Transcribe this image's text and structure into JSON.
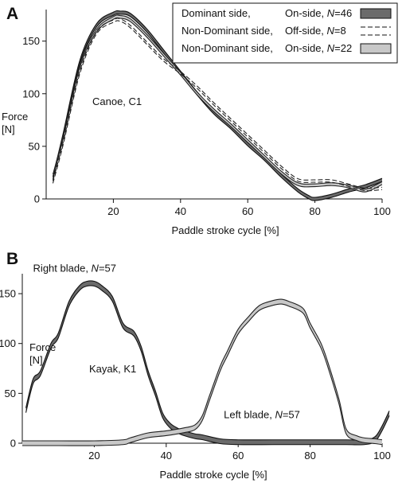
{
  "chart_data": [
    {
      "panel": "A",
      "type": "line",
      "title": "",
      "xlabel": "Paddle stroke cycle [%]",
      "ylabel_line1": "Force",
      "ylabel_line2": "[N]",
      "xlim": [
        0,
        100
      ],
      "ylim": [
        0,
        180
      ],
      "xticks": [
        20,
        40,
        60,
        80,
        100
      ],
      "yticks": [
        0,
        50,
        100,
        150
      ],
      "annotation": "Canoe, C1",
      "legend": [
        {
          "label": "Dominant side,",
          "side": "On-side, ",
          "n": "=46",
          "style": "dark-band"
        },
        {
          "label": "Non-Dominant side,",
          "side": "Off-side, ",
          "n": "=8",
          "style": "dashed"
        },
        {
          "label": "Non-Dominant side,",
          "side": "On-side, ",
          "n": "=22",
          "style": "light-band"
        }
      ],
      "series": [
        {
          "name": "Dominant side, On-side",
          "style": "dark-band",
          "band": 4,
          "x": [
            2,
            5,
            10,
            15,
            20,
            22,
            25,
            30,
            35,
            40,
            45,
            50,
            55,
            60,
            65,
            70,
            75,
            78,
            80,
            85,
            90,
            95,
            100
          ],
          "y": [
            20,
            60,
            130,
            165,
            176,
            177,
            175,
            160,
            140,
            120,
            100,
            82,
            68,
            52,
            38,
            22,
            8,
            2,
            0,
            3,
            8,
            12,
            18
          ]
        },
        {
          "name": "Non-Dominant side, Off-side",
          "style": "dashed",
          "band": 3,
          "x": [
            2,
            5,
            10,
            15,
            20,
            22,
            25,
            30,
            35,
            40,
            45,
            50,
            55,
            60,
            65,
            70,
            75,
            80,
            85,
            90,
            95,
            100
          ],
          "y": [
            16,
            52,
            120,
            158,
            169,
            170,
            164,
            148,
            132,
            120,
            106,
            90,
            75,
            60,
            45,
            30,
            18,
            17,
            17,
            13,
            9,
            10
          ]
        },
        {
          "name": "Non-Dominant side, On-side",
          "style": "light-band",
          "band": 3.5,
          "x": [
            2,
            5,
            10,
            15,
            20,
            22,
            25,
            30,
            35,
            40,
            45,
            50,
            55,
            60,
            65,
            70,
            75,
            80,
            85,
            90,
            95,
            100
          ],
          "y": [
            22,
            58,
            126,
            160,
            172,
            173,
            170,
            155,
            137,
            119,
            100,
            84,
            70,
            55,
            40,
            25,
            14,
            13,
            14,
            12,
            8,
            15
          ]
        }
      ]
    },
    {
      "panel": "B",
      "type": "line",
      "title": "",
      "xlabel": "Paddle stroke cycle [%]",
      "ylabel_line1": "Force",
      "ylabel_line2": "[N]",
      "xlim": [
        0,
        100
      ],
      "ylim": [
        0,
        170
      ],
      "xticks": [
        20,
        40,
        60,
        80,
        100
      ],
      "yticks": [
        0,
        50,
        100,
        150
      ],
      "annotation": "Kayak, K1",
      "labels": [
        {
          "text": "Right blade, ",
          "n": "=57",
          "x": 3,
          "y": 172
        },
        {
          "text": "Left blade, ",
          "n": "=57",
          "x": 56,
          "y": 25
        }
      ],
      "series": [
        {
          "name": "Right blade, N=57",
          "style": "dark-band",
          "band": 6,
          "x": [
            1,
            3,
            5,
            8,
            10,
            13,
            16,
            18,
            20,
            22,
            25,
            28,
            31,
            33,
            35,
            37,
            39,
            41,
            43,
            45,
            48,
            50,
            55,
            60,
            70,
            80,
            90,
            95,
            98,
            100,
            102
          ],
          "y": [
            33,
            62,
            70,
            98,
            108,
            140,
            156,
            160,
            160,
            156,
            145,
            118,
            110,
            95,
            70,
            50,
            28,
            18,
            13,
            10,
            7,
            6,
            2,
            1,
            1,
            1,
            1,
            1,
            4,
            15,
            30
          ]
        },
        {
          "name": "Left blade, N=57",
          "style": "light-band",
          "band": 6,
          "x": [
            0,
            10,
            20,
            28,
            30,
            35,
            40,
            45,
            48,
            50,
            52,
            55,
            57,
            60,
            63,
            66,
            70,
            72,
            74,
            78,
            80,
            83,
            85,
            88,
            90,
            93,
            95,
            98,
            100
          ],
          "y": [
            0,
            0,
            0,
            1,
            3,
            8,
            10,
            13,
            16,
            25,
            45,
            75,
            90,
            112,
            125,
            136,
            141,
            142,
            140,
            133,
            118,
            98,
            78,
            42,
            12,
            5,
            3,
            2,
            1
          ]
        }
      ]
    }
  ]
}
